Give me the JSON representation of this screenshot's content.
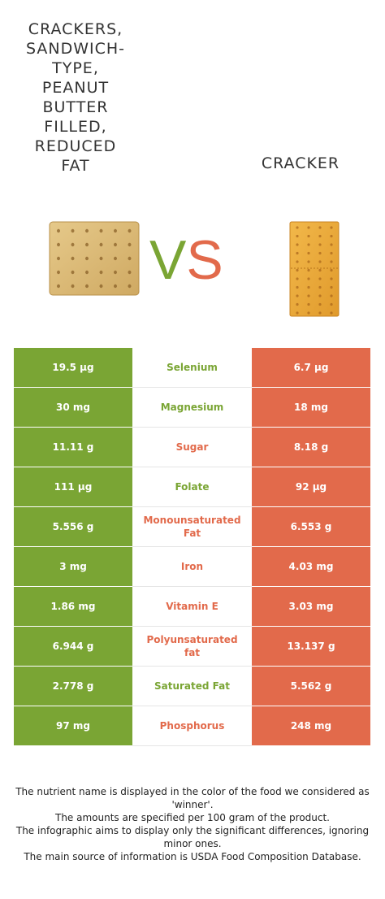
{
  "food_left": {
    "name": "Crackers,\nsandwich-\ntype,\npeanut\nbutter\nfilled,\nreduced\nfat",
    "color": "#7aa534"
  },
  "food_right": {
    "name": "Cracker",
    "color": "#e26a4b"
  },
  "vs": {
    "v": "V",
    "s": "S"
  },
  "rows": [
    {
      "left": "19.5 µg",
      "nutrient": "Selenium",
      "right": "6.7 µg",
      "winner": "left"
    },
    {
      "left": "30 mg",
      "nutrient": "Magnesium",
      "right": "18 mg",
      "winner": "left"
    },
    {
      "left": "11.11 g",
      "nutrient": "Sugar",
      "right": "8.18 g",
      "winner": "right"
    },
    {
      "left": "111 µg",
      "nutrient": "Folate",
      "right": "92 µg",
      "winner": "left"
    },
    {
      "left": "5.556 g",
      "nutrient": "Monounsaturated Fat",
      "right": "6.553 g",
      "winner": "right"
    },
    {
      "left": "3 mg",
      "nutrient": "Iron",
      "right": "4.03 mg",
      "winner": "right"
    },
    {
      "left": "1.86 mg",
      "nutrient": "Vitamin E",
      "right": "3.03 mg",
      "winner": "right"
    },
    {
      "left": "6.944 g",
      "nutrient": "Polyunsaturated fat",
      "right": "13.137 g",
      "winner": "right"
    },
    {
      "left": "2.778 g",
      "nutrient": "Saturated Fat",
      "right": "5.562 g",
      "winner": "left"
    },
    {
      "left": "97 mg",
      "nutrient": "Phosphorus",
      "right": "248 mg",
      "winner": "right"
    }
  ],
  "footer": {
    "line1": "The nutrient name is displayed in the color of the food we considered as 'winner'.",
    "line2": "The amounts are specified per 100 gram of the product.",
    "line3": "The infographic aims to display only the significant differences, ignoring minor ones.",
    "line4": "The main source of information is USDA Food Composition Database."
  }
}
